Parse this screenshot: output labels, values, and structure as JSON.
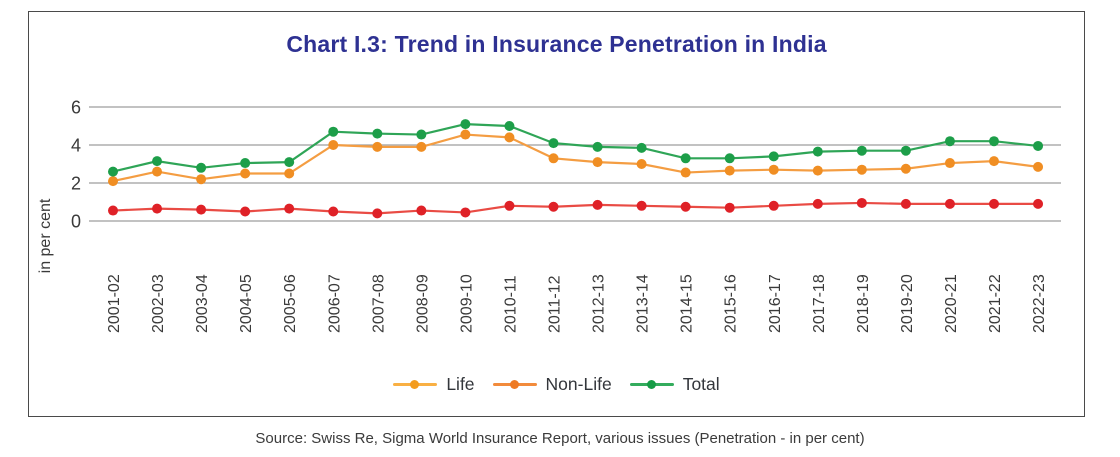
{
  "title": "Chart I.3: Trend in Insurance Penetration in India",
  "source_note": "Source: Swiss Re, Sigma World Insurance Report, various issues (Penetration - in per cent)",
  "colors": {
    "title": "#2E3192",
    "border": "#4a4a4a",
    "gridline": "#9e9e9e",
    "axis_text": "#3a3a3a",
    "legend_text": "#33363b"
  },
  "chart_data": {
    "type": "line",
    "title": "Chart I.3: Trend in Insurance Penetration in India",
    "xlabel": "",
    "ylabel": "in per cent",
    "ylim": [
      0,
      6
    ],
    "yticks": [
      0,
      2,
      4,
      6
    ],
    "grid": true,
    "legend_position": "bottom",
    "categories": [
      "2001-02",
      "2002-03",
      "2003-04",
      "2004-05",
      "2005-06",
      "2006-07",
      "2007-08",
      "2008-09",
      "2009-10",
      "2010-11",
      "2011-12",
      "2012-13",
      "2013-14",
      "2014-15",
      "2015-16",
      "2016-17",
      "2017-18",
      "2018-19",
      "2019-20",
      "2020-21",
      "2021-22",
      "2022-23"
    ],
    "series": [
      {
        "name": "Life",
        "line_color": "#F49D42",
        "marker_color": "#F08E23",
        "legend_line_color": "#F9B044",
        "legend_dot_color": "#F39C1F",
        "values": [
          2.1,
          2.6,
          2.2,
          2.5,
          2.5,
          4.0,
          3.9,
          3.9,
          4.55,
          4.4,
          3.3,
          3.1,
          3.0,
          2.55,
          2.65,
          2.7,
          2.65,
          2.7,
          2.75,
          3.05,
          3.15,
          2.85
        ]
      },
      {
        "name": "Non-Life",
        "line_color": "#E94B44",
        "marker_color": "#DF2127",
        "legend_line_color": "#F28B3C",
        "legend_dot_color": "#EE7A24",
        "values": [
          0.55,
          0.65,
          0.6,
          0.5,
          0.65,
          0.5,
          0.4,
          0.55,
          0.45,
          0.8,
          0.75,
          0.85,
          0.8,
          0.75,
          0.7,
          0.8,
          0.9,
          0.95,
          0.9,
          0.9,
          0.9,
          0.9
        ]
      },
      {
        "name": "Total",
        "line_color": "#2FA557",
        "marker_color": "#1D9E49",
        "legend_line_color": "#34AC5D",
        "legend_dot_color": "#169C46",
        "values": [
          2.6,
          3.15,
          2.8,
          3.05,
          3.1,
          4.7,
          4.6,
          4.55,
          5.1,
          5.0,
          4.1,
          3.9,
          3.85,
          3.3,
          3.3,
          3.4,
          3.65,
          3.7,
          3.7,
          4.2,
          4.2,
          3.95
        ]
      }
    ]
  }
}
